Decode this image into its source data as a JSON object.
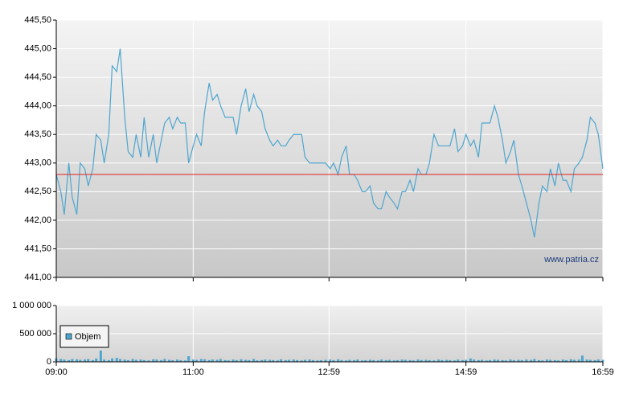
{
  "chart_data": {
    "type": "line",
    "x": [
      "09:00",
      "09:04",
      "09:07",
      "09:11",
      "09:14",
      "09:18",
      "09:21",
      "09:25",
      "09:28",
      "09:32",
      "09:35",
      "09:39",
      "09:42",
      "09:46",
      "09:49",
      "09:53",
      "09:56",
      "10:00",
      "10:03",
      "10:07",
      "10:10",
      "10:14",
      "10:17",
      "10:21",
      "10:25",
      "10:28",
      "10:32",
      "10:35",
      "10:39",
      "10:42",
      "10:46",
      "10:49",
      "10:53",
      "10:56",
      "11:00",
      "11:03",
      "11:07",
      "11:10",
      "11:14",
      "11:17",
      "11:21",
      "11:24",
      "11:28",
      "11:31",
      "11:35",
      "11:38",
      "11:42",
      "11:46",
      "11:49",
      "11:53",
      "11:56",
      "12:00",
      "12:03",
      "12:07",
      "12:10",
      "12:14",
      "12:17",
      "12:21",
      "12:24",
      "12:28",
      "12:31",
      "12:35",
      "12:38",
      "12:42",
      "12:45",
      "12:49",
      "12:52",
      "12:56",
      "13:00",
      "13:03",
      "13:07",
      "13:10",
      "13:14",
      "13:17",
      "13:21",
      "13:24",
      "13:28",
      "13:31",
      "13:35",
      "13:38",
      "13:42",
      "13:45",
      "13:49",
      "13:52",
      "13:56",
      "13:59",
      "14:03",
      "14:06",
      "14:10",
      "14:13",
      "14:17",
      "14:20",
      "14:24",
      "14:27",
      "14:31",
      "14:35",
      "14:38",
      "14:42",
      "14:45",
      "14:49",
      "14:52",
      "14:56",
      "14:59",
      "15:03",
      "15:06",
      "15:10",
      "15:13",
      "15:17",
      "15:20",
      "15:24",
      "15:27",
      "15:31",
      "15:34",
      "15:38",
      "15:41",
      "15:45",
      "15:48",
      "15:52",
      "15:56",
      "15:59",
      "16:03",
      "16:06",
      "16:10",
      "16:13",
      "16:17",
      "16:20",
      "16:24",
      "16:27",
      "16:31",
      "16:34",
      "16:38",
      "16:41",
      "16:45",
      "16:48",
      "16:52",
      "16:55",
      "16:59"
    ],
    "xlim": [
      "09:00",
      "16:59"
    ],
    "xticks": [
      "09:00",
      "11:00",
      "12:59",
      "14:59",
      "16:59"
    ],
    "ylim": [
      441,
      445.5
    ],
    "yticks": [
      {
        "value": 441,
        "label": "441,00"
      },
      {
        "value": 441.5,
        "label": "441,50"
      },
      {
        "value": 442,
        "label": "442,00"
      },
      {
        "value": 442.5,
        "label": "442,50"
      },
      {
        "value": 443,
        "label": "443,00"
      },
      {
        "value": 443.5,
        "label": "443,50"
      },
      {
        "value": 444,
        "label": "444,00"
      },
      {
        "value": 444.5,
        "label": "444,50"
      },
      {
        "value": 445,
        "label": "445,00"
      },
      {
        "value": 445.5,
        "label": "445,50"
      }
    ],
    "y2lim": [
      0,
      1000000
    ],
    "y2ticks": [
      0,
      {
        "value": 500000,
        "label": "500 000"
      },
      {
        "value": 1000000,
        "label": "1 000 000"
      }
    ],
    "grid": true,
    "reference_line": {
      "value": 442.8,
      "color": "#e02020"
    },
    "watermark": "www.patria.cz",
    "legend": "upper-left",
    "series": [
      {
        "color": "#4ea6cf",
        "values": [
          442.8,
          442.5,
          442.1,
          443.0,
          442.4,
          442.1,
          443.0,
          442.9,
          442.6,
          442.9,
          443.5,
          443.4,
          443.0,
          443.5,
          444.7,
          444.6,
          445.0,
          443.8,
          443.2,
          443.1,
          443.5,
          443.1,
          443.8,
          443.1,
          443.5,
          443.0,
          443.4,
          443.7,
          443.8,
          443.6,
          443.8,
          443.7,
          443.7,
          443.0,
          443.3,
          443.5,
          443.3,
          443.9,
          444.4,
          444.1,
          444.2,
          444.0,
          443.8,
          443.8,
          443.8,
          443.5,
          444.0,
          444.3,
          443.9,
          444.2,
          444.0,
          443.9,
          443.6,
          443.4,
          443.3,
          443.4,
          443.3,
          443.3,
          443.4,
          443.5,
          443.5,
          443.5,
          443.1,
          443.0,
          443.0,
          443.0,
          443.0,
          443.0,
          442.9,
          443.0,
          442.8,
          443.1,
          443.3,
          442.8,
          442.8,
          442.7,
          442.5,
          442.5,
          442.6,
          442.3,
          442.2,
          442.2,
          442.5,
          442.4,
          442.3,
          442.2,
          442.5,
          442.5,
          442.7,
          442.5,
          442.9,
          442.8,
          442.8,
          443.0,
          443.5,
          443.3,
          443.3,
          443.3,
          443.3,
          443.6,
          443.2,
          443.3,
          443.5,
          443.3,
          443.4,
          443.1,
          443.7,
          443.7,
          443.7,
          444.0,
          443.8,
          443.4,
          443.0,
          443.2,
          443.4,
          442.8,
          442.6,
          442.3,
          442.0,
          441.7,
          442.3,
          442.6,
          442.5,
          442.9,
          442.6,
          443.0,
          442.7,
          442.7,
          442.5,
          442.9,
          443.0,
          443.1,
          443.4,
          443.8,
          443.7,
          443.5,
          442.9
        ]
      },
      {
        "name": "Objem",
        "type": "bar",
        "axis": "y2",
        "color": "#4ea6cf",
        "values": [
          60000,
          50000,
          40000,
          30000,
          50000,
          45000,
          35000,
          40000,
          50000,
          30000,
          60000,
          200000,
          40000,
          30000,
          60000,
          70000,
          50000,
          40000,
          30000,
          50000,
          35000,
          40000,
          30000,
          25000,
          45000,
          40000,
          30000,
          50000,
          35000,
          30000,
          40000,
          30000,
          25000,
          100000,
          40000,
          35000,
          50000,
          45000,
          30000,
          40000,
          35000,
          50000,
          30000,
          25000,
          40000,
          30000,
          45000,
          35000,
          30000,
          50000,
          25000,
          30000,
          40000,
          35000,
          30000,
          25000,
          45000,
          30000,
          35000,
          40000,
          30000,
          25000,
          35000,
          40000,
          30000,
          25000,
          30000,
          35000,
          40000,
          30000,
          45000,
          30000,
          25000,
          35000,
          30000,
          40000,
          25000,
          30000,
          35000,
          30000,
          25000,
          40000,
          30000,
          35000,
          25000,
          30000,
          40000,
          35000,
          30000,
          25000,
          40000,
          30000,
          35000,
          30000,
          25000,
          40000,
          30000,
          35000,
          30000,
          25000,
          40000,
          30000,
          35000,
          60000,
          40000,
          30000,
          35000,
          25000,
          30000,
          40000,
          35000,
          30000,
          25000,
          40000,
          30000,
          35000,
          30000,
          40000,
          35000,
          50000,
          30000,
          25000,
          40000,
          35000,
          30000,
          25000,
          40000,
          30000,
          45000,
          35000,
          40000,
          110000,
          40000,
          35000,
          30000,
          40000,
          35000
        ]
      }
    ]
  }
}
